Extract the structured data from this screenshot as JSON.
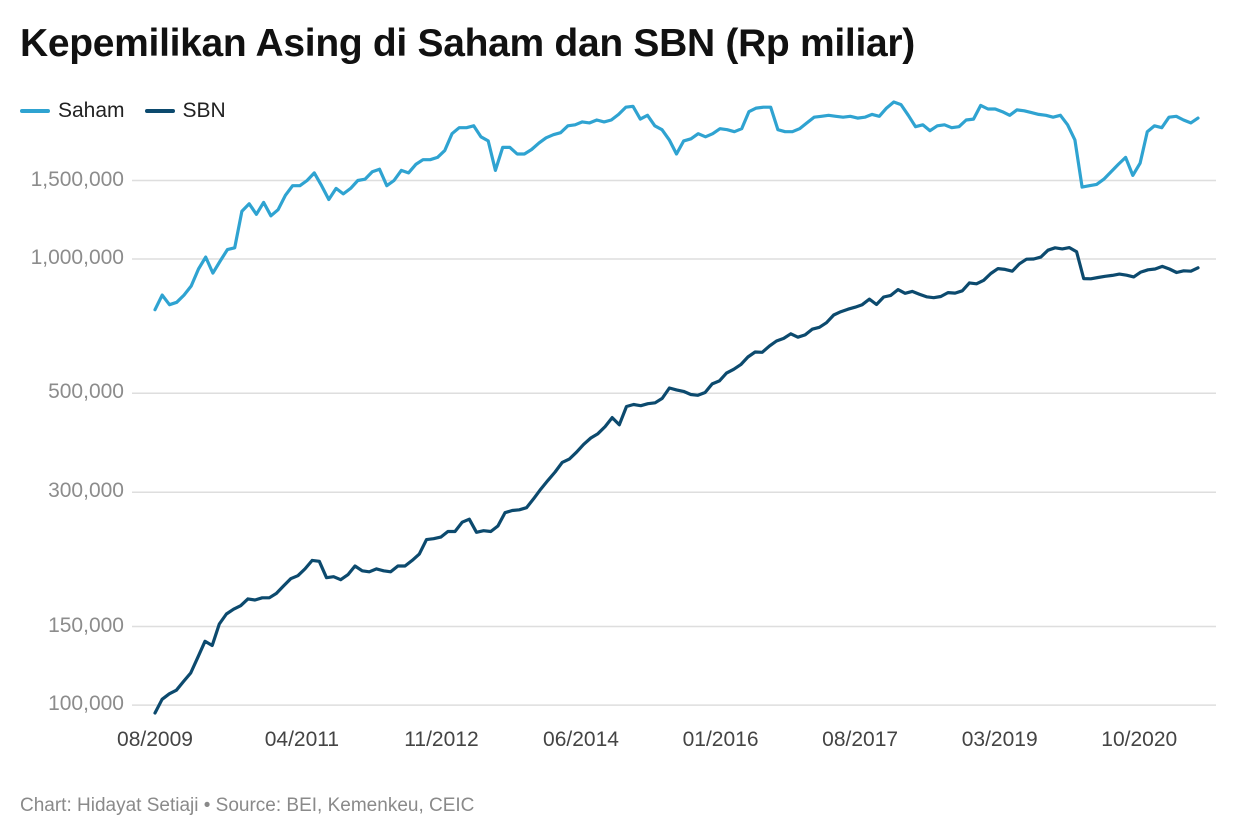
{
  "chart_data": {
    "type": "line",
    "title": "Kepemilikan Asing di Saham dan SBN (Rp miliar)",
    "y_scale": "log",
    "ylim": [
      95000,
      2050000
    ],
    "yticks": [
      100000,
      150000,
      300000,
      500000,
      1000000,
      1500000
    ],
    "ytick_labels": [
      "100,000",
      "150,000",
      "300,000",
      "500,000",
      "1,000,000",
      "1,500,000"
    ],
    "xticks": [
      "08/2009",
      "04/2011",
      "11/2012",
      "06/2014",
      "01/2016",
      "08/2017",
      "03/2019",
      "10/2020"
    ],
    "x_start": "08/2009",
    "x_end": "06/2021",
    "legend_position": "top-left",
    "grid": "horizontal",
    "series": [
      {
        "name": "Saham",
        "color": "#2fa3d1",
        "values": [
          770000,
          830000,
          790000,
          800000,
          830000,
          870000,
          950000,
          1010000,
          930000,
          990000,
          1050000,
          1060000,
          1280000,
          1330000,
          1260000,
          1340000,
          1250000,
          1290000,
          1390000,
          1460000,
          1460000,
          1500000,
          1560000,
          1460000,
          1360000,
          1440000,
          1400000,
          1440000,
          1500000,
          1510000,
          1570000,
          1590000,
          1460000,
          1500000,
          1580000,
          1560000,
          1630000,
          1670000,
          1670000,
          1690000,
          1750000,
          1910000,
          1970000,
          1970000,
          1990000,
          1880000,
          1840000,
          1580000,
          1780000,
          1780000,
          1720000,
          1720000,
          1760000,
          1820000,
          1870000,
          1900000,
          1920000,
          1990000,
          2000000,
          2030000,
          2020000,
          2050000,
          2030000,
          2050000,
          2110000,
          2190000,
          2200000,
          2060000,
          2100000,
          1990000,
          1950000,
          1850000,
          1720000,
          1840000,
          1860000,
          1910000,
          1880000,
          1910000,
          1960000,
          1950000,
          1930000,
          1960000,
          2140000,
          2180000,
          2190000,
          2190000,
          1950000,
          1930000,
          1930000,
          1960000,
          2020000,
          2080000,
          2090000,
          2100000,
          2090000,
          2080000,
          2090000,
          2070000,
          2080000,
          2110000,
          2090000,
          2180000,
          2250000,
          2220000,
          2100000,
          1980000,
          2000000,
          1940000,
          1990000,
          2000000,
          1970000,
          1980000,
          2050000,
          2060000,
          2210000,
          2170000,
          2170000,
          2140000,
          2100000,
          2160000,
          2150000,
          2130000,
          2110000,
          2100000,
          2080000,
          2100000,
          2000000,
          1850000,
          1450000,
          1460000,
          1470000,
          1510000,
          1570000,
          1630000,
          1690000,
          1540000,
          1640000,
          1930000,
          1990000,
          1970000,
          2080000,
          2090000,
          2050000,
          2020000,
          2070000
        ],
        "note_end": ""
      },
      {
        "name": "SBN",
        "color": "#0c4a6e",
        "values": [
          96000,
          103000,
          106000,
          108000,
          113000,
          118000,
          128000,
          139000,
          136000,
          152000,
          160000,
          164000,
          167000,
          173000,
          172000,
          174000,
          174000,
          178000,
          185000,
          192000,
          195000,
          202000,
          211000,
          210000,
          193000,
          194000,
          191000,
          196000,
          205000,
          200000,
          199000,
          202000,
          200000,
          199000,
          205000,
          205000,
          211000,
          218000,
          235000,
          236000,
          238000,
          245000,
          245000,
          257000,
          261000,
          244000,
          246000,
          245000,
          252000,
          270000,
          273000,
          274000,
          277000,
          290000,
          305000,
          319000,
          333000,
          350000,
          356000,
          369000,
          384000,
          397000,
          406000,
          421000,
          441000,
          425000,
          467000,
          472000,
          469000,
          474000,
          476000,
          487000,
          514000,
          509000,
          505000,
          497000,
          495000,
          502000,
          525000,
          533000,
          555000,
          566000,
          580000,
          603000,
          619000,
          618000,
          638000,
          655000,
          664000,
          680000,
          668000,
          676000,
          696000,
          703000,
          720000,
          749000,
          762000,
          772000,
          780000,
          790000,
          813000,
          791000,
          822000,
          829000,
          854000,
          838000,
          846000,
          834000,
          823000,
          819000,
          824000,
          841000,
          839000,
          849000,
          884000,
          880000,
          896000,
          928000,
          952000,
          948000,
          939000,
          976000,
          999000,
          1000000,
          1010000,
          1047000,
          1060000,
          1054000,
          1061000,
          1038000,
          904000,
          903000,
          909000,
          915000,
          919000,
          925000,
          920000,
          912000,
          935000,
          946000,
          950000,
          963000,
          950000,
          933000,
          941000,
          939000,
          956000
        ]
      }
    ]
  },
  "legend": [
    "Saham",
    "SBN"
  ],
  "footer": "Chart: Hidayat Setiaji • Source: BEI, Kemenkeu, CEIC"
}
